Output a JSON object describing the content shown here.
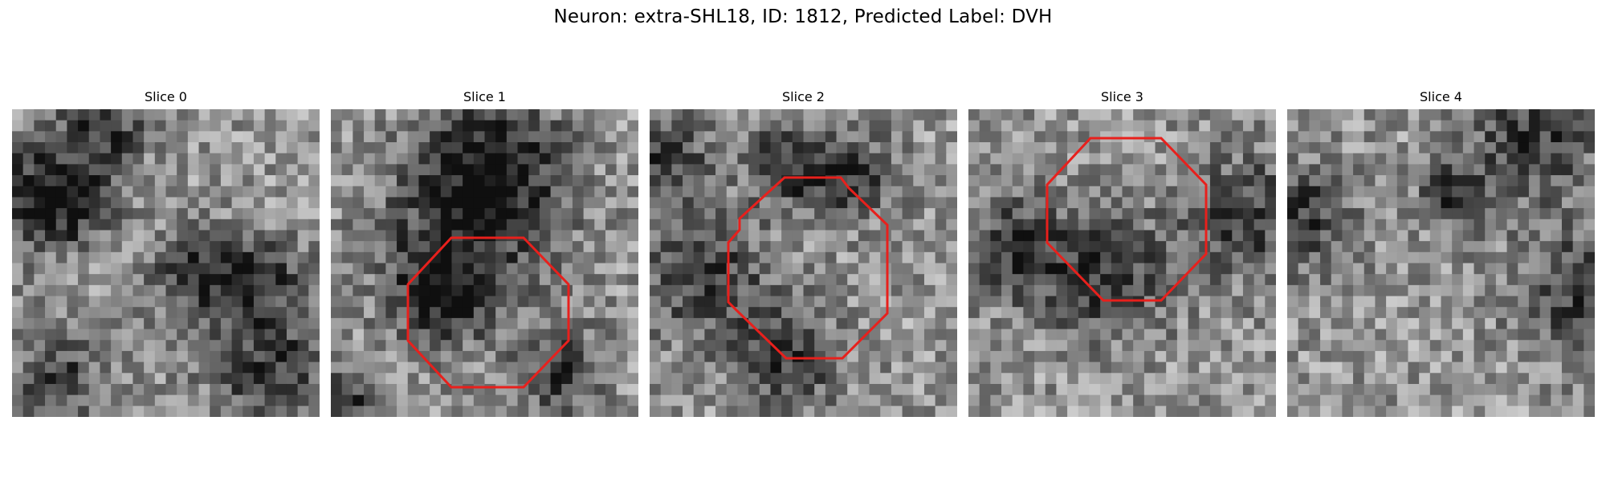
{
  "figure": {
    "title": "Neuron: extra-SHL18, ID: 1812, Predicted Label: DVH"
  },
  "grid_size": 28,
  "outline_color": "#e8201c",
  "slices": [
    {
      "label": "Slice 0",
      "has_outline": false,
      "dark_regions": [
        [
          0.05,
          0.28,
          0.12
        ],
        [
          0.2,
          0.3,
          0.1
        ],
        [
          0.3,
          0.05,
          0.1
        ],
        [
          0.85,
          0.85,
          0.14
        ],
        [
          0.8,
          0.55,
          0.1
        ],
        [
          0.6,
          0.55,
          0.1
        ],
        [
          0.15,
          0.88,
          0.1
        ]
      ]
    },
    {
      "label": "Slice 1",
      "has_outline": true,
      "dark_regions": [
        [
          0.45,
          0.35,
          0.2
        ],
        [
          0.55,
          0.15,
          0.14
        ],
        [
          0.35,
          0.6,
          0.12
        ],
        [
          0.75,
          0.85,
          0.1
        ],
        [
          0.05,
          0.95,
          0.08
        ]
      ]
    },
    {
      "label": "Slice 2",
      "has_outline": true,
      "dark_regions": [
        [
          0.18,
          0.55,
          0.14
        ],
        [
          0.45,
          0.82,
          0.12
        ],
        [
          0.45,
          0.18,
          0.1
        ],
        [
          0.65,
          0.22,
          0.1
        ],
        [
          0.05,
          0.15,
          0.1
        ]
      ]
    },
    {
      "label": "Slice 3",
      "has_outline": true,
      "dark_regions": [
        [
          0.9,
          0.35,
          0.14
        ],
        [
          0.15,
          0.45,
          0.12
        ],
        [
          0.45,
          0.55,
          0.14
        ]
      ]
    },
    {
      "label": "Slice 4",
      "has_outline": false,
      "dark_regions": [
        [
          0.8,
          0.1,
          0.14
        ],
        [
          0.05,
          0.35,
          0.12
        ],
        [
          0.95,
          0.6,
          0.14
        ],
        [
          0.55,
          0.28,
          0.08
        ]
      ]
    }
  ]
}
